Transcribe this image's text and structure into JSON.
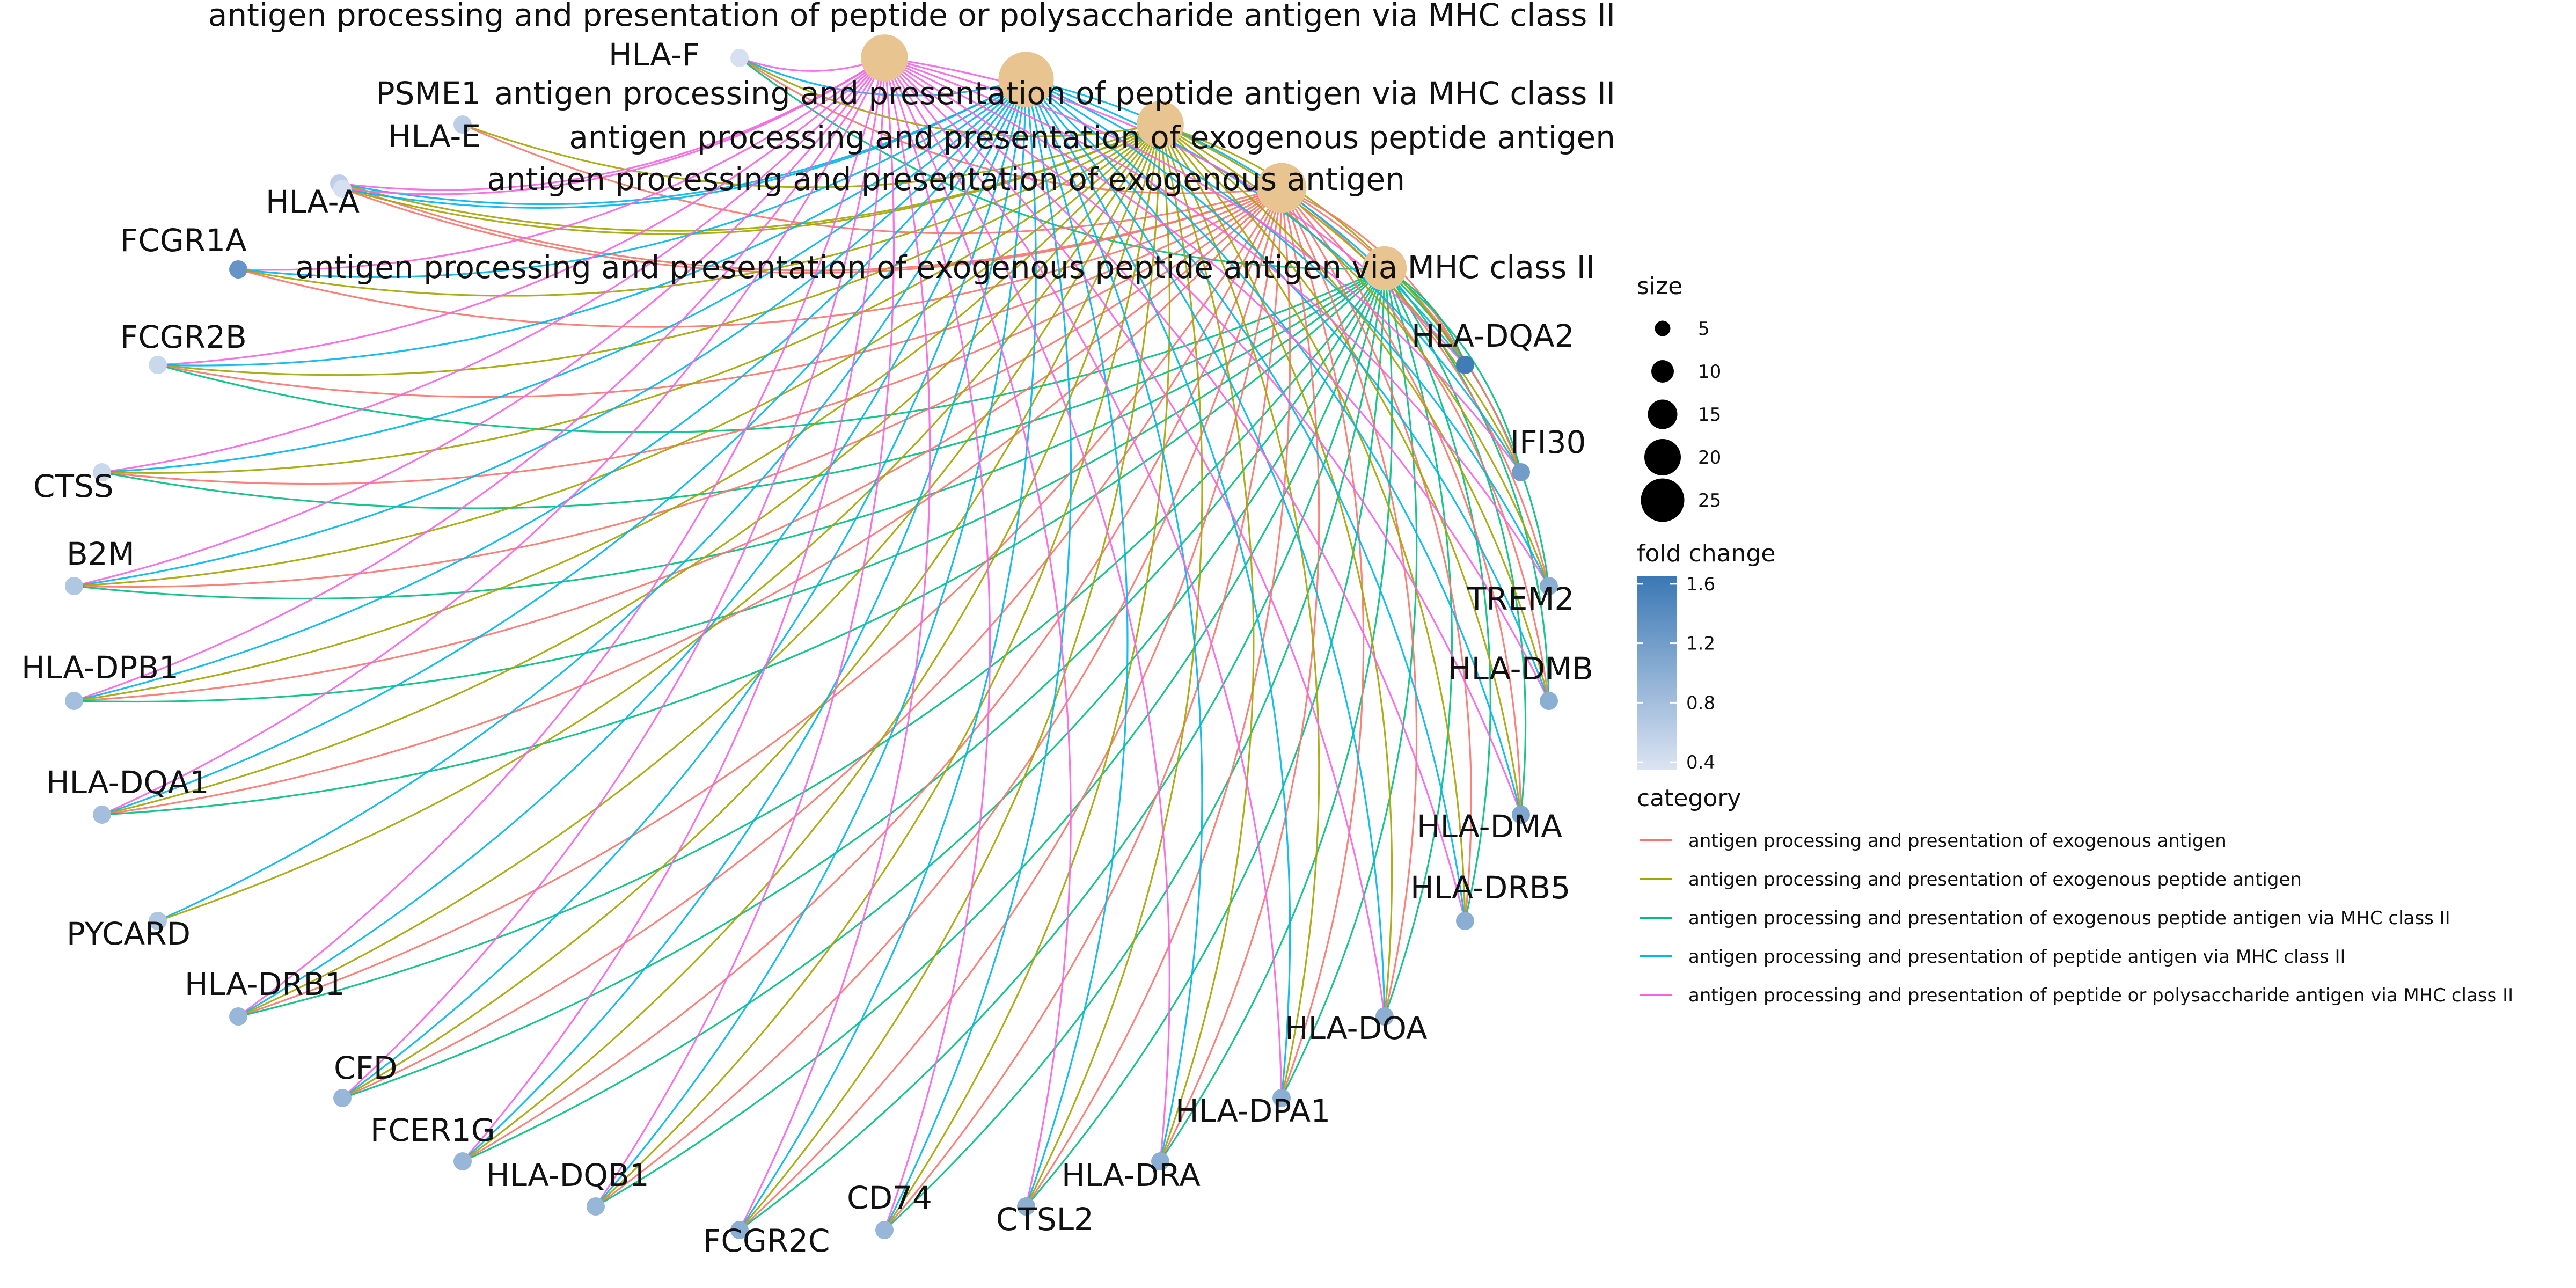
{
  "pathways": [
    {
      "name": "antigen processing and presentation of peptide or polysaccharide antigen via MHC class II",
      "color": "#F564E3",
      "size": 13
    },
    {
      "name": "antigen processing and presentation of peptide antigen via MHC class II",
      "color": "#00B6EB",
      "size": 16
    },
    {
      "name": "antigen processing and presentation of exogenous peptide antigen",
      "color": "#A3A500",
      "size": 13
    },
    {
      "name": "antigen processing and presentation of exogenous antigen",
      "color": "#F8766D",
      "size": 14
    },
    {
      "name": "antigen processing and presentation of exogenous peptide antigen via MHC class II",
      "color": "#00BF7D",
      "size": 12
    }
  ],
  "genes": [
    {
      "name": "HLA-F",
      "fold_change": 0.4,
      "pathways": [
        0,
        1,
        2,
        3,
        4
      ]
    },
    {
      "name": "PSME1",
      "fold_change": 0.6,
      "pathways": [
        2,
        3
      ]
    },
    {
      "name": "HLA-E",
      "fold_change": 0.6,
      "pathways": [
        0,
        1,
        2,
        3
      ]
    },
    {
      "name": "HLA-A",
      "fold_change": 0.4,
      "pathways": [
        0,
        1,
        2,
        3
      ]
    },
    {
      "name": "FCGR1A",
      "fold_change": 1.3,
      "pathways": [
        0,
        1,
        2,
        3
      ]
    },
    {
      "name": "FCGR2B",
      "fold_change": 0.5,
      "pathways": [
        0,
        1,
        2,
        3,
        4
      ]
    },
    {
      "name": "CTSS",
      "fold_change": 0.5,
      "pathways": [
        0,
        1,
        2,
        3,
        4
      ]
    },
    {
      "name": "B2M",
      "fold_change": 0.7,
      "pathways": [
        0,
        1,
        2,
        3,
        4
      ]
    },
    {
      "name": "HLA-DPB1",
      "fold_change": 0.8,
      "pathways": [
        0,
        1,
        2,
        3,
        4
      ]
    },
    {
      "name": "HLA-DQA1",
      "fold_change": 0.8,
      "pathways": [
        0,
        1,
        2,
        3,
        4
      ]
    },
    {
      "name": "PYCARD",
      "fold_change": 0.7,
      "pathways": [
        1,
        2
      ]
    },
    {
      "name": "HLA-DRB1",
      "fold_change": 0.9,
      "pathways": [
        0,
        1,
        2,
        3,
        4
      ]
    },
    {
      "name": "CFD",
      "fold_change": 0.9,
      "pathways": [
        0,
        1,
        2,
        3,
        4
      ]
    },
    {
      "name": "FCER1G",
      "fold_change": 0.9,
      "pathways": [
        0,
        1,
        2,
        3,
        4
      ]
    },
    {
      "name": "HLA-DQB1",
      "fold_change": 0.9,
      "pathways": [
        0,
        1,
        2,
        3,
        4
      ]
    },
    {
      "name": "FCGR2C",
      "fold_change": 1.0,
      "pathways": [
        0,
        1,
        2,
        3,
        4
      ]
    },
    {
      "name": "CD74",
      "fold_change": 0.9,
      "pathways": [
        0,
        1,
        2,
        3,
        4
      ]
    },
    {
      "name": "CTSL2",
      "fold_change": 1.0,
      "pathways": [
        0,
        1,
        2,
        3,
        4
      ]
    },
    {
      "name": "HLA-DRA",
      "fold_change": 1.0,
      "pathways": [
        0,
        1,
        2,
        3,
        4
      ]
    },
    {
      "name": "HLA-DPA1",
      "fold_change": 1.0,
      "pathways": [
        0,
        1,
        2,
        3,
        4
      ]
    },
    {
      "name": "HLA-DOA",
      "fold_change": 1.0,
      "pathways": [
        0,
        1,
        2,
        3,
        4
      ]
    },
    {
      "name": "HLA-DRB5",
      "fold_change": 1.0,
      "pathways": [
        0,
        1,
        2,
        3,
        4
      ]
    },
    {
      "name": "HLA-DMA",
      "fold_change": 1.1,
      "pathways": [
        0,
        1,
        2,
        3,
        4
      ]
    },
    {
      "name": "HLA-DMB",
      "fold_change": 1.0,
      "pathways": [
        0,
        1,
        2,
        3,
        4
      ]
    },
    {
      "name": "TREM2",
      "fold_change": 1.0,
      "pathways": [
        0,
        1,
        2,
        3,
        4
      ]
    },
    {
      "name": "IFI30",
      "fold_change": 1.2,
      "pathways": [
        0,
        1,
        2,
        3,
        4
      ]
    },
    {
      "name": "HLA-DQA2",
      "fold_change": 1.6,
      "pathways": [
        0,
        1,
        2,
        3,
        4
      ]
    }
  ],
  "legend": {
    "size_title": "size",
    "size_values": [
      5,
      10,
      15,
      20,
      25
    ],
    "color_title": "fold change",
    "color_ticks": [
      1.6,
      1.2,
      0.8,
      0.4
    ],
    "color_range": [
      0.35,
      1.65
    ],
    "color_low": "#DCE4F2",
    "color_high": "#3A78B4",
    "category_title": "category",
    "category_items": [
      {
        "label": "antigen processing and presentation of exogenous antigen",
        "color": "#F8766D"
      },
      {
        "label": "antigen processing and presentation of exogenous peptide antigen",
        "color": "#A3A500"
      },
      {
        "label": "antigen processing and presentation of exogenous peptide antigen via MHC class II",
        "color": "#00BF7D"
      },
      {
        "label": "antigen processing and presentation of peptide antigen via MHC class II",
        "color": "#00B6EB"
      },
      {
        "label": "antigen processing and presentation of peptide or polysaccharide antigen via MHC class II",
        "color": "#F564E3"
      }
    ]
  },
  "colors": {
    "pathway_node": "#E8C490",
    "label": "#111111"
  }
}
